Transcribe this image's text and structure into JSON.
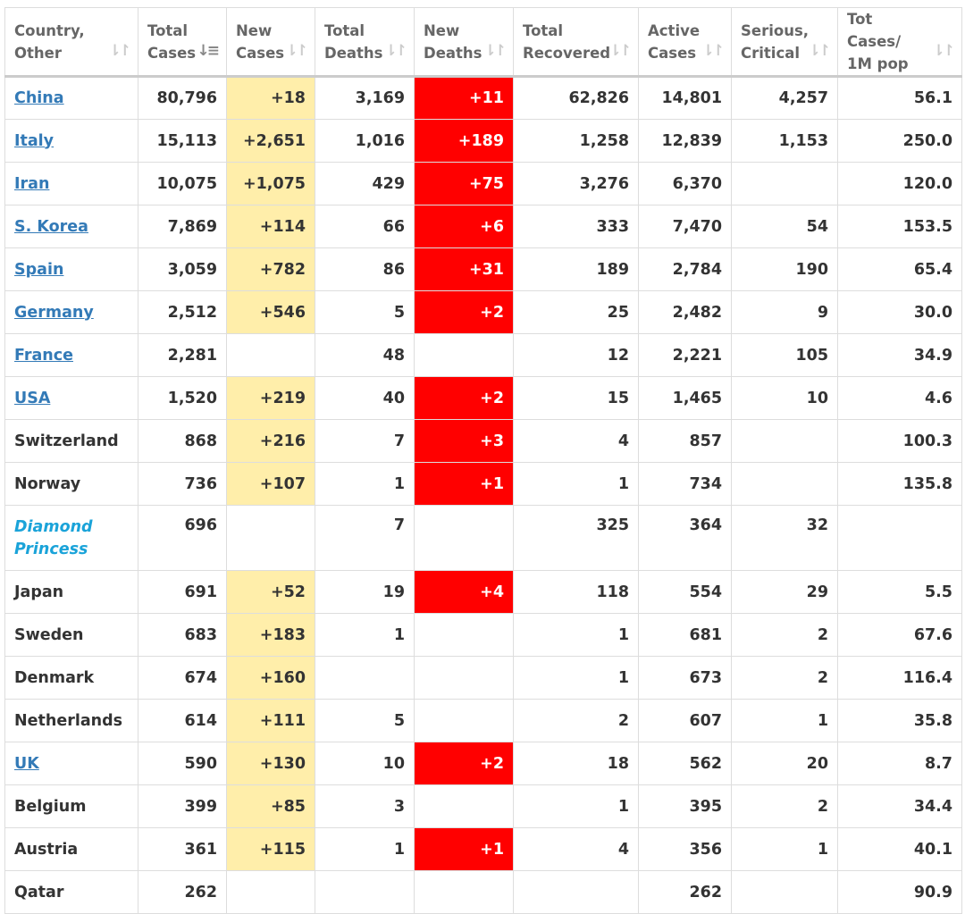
{
  "headers": [
    {
      "label1": "Country,",
      "label2": "Other",
      "sort": "⇂↾",
      "active": false
    },
    {
      "label1": "Total",
      "label2": "Cases",
      "sort": "↓≡",
      "active": true
    },
    {
      "label1": "New",
      "label2": "Cases",
      "sort": "⇂↾",
      "active": false
    },
    {
      "label1": "Total",
      "label2": "Deaths",
      "sort": "⇂↾",
      "active": false
    },
    {
      "label1": "New",
      "label2": "Deaths",
      "sort": "⇂↾",
      "active": false
    },
    {
      "label1": "Total",
      "label2": "Recovered",
      "sort": "⇂↾",
      "active": false
    },
    {
      "label1": "Active",
      "label2": "Cases",
      "sort": "⇂↾",
      "active": false
    },
    {
      "label1": "Serious,",
      "label2": "Critical",
      "sort": "⇂↾",
      "active": false
    },
    {
      "label1": "Tot Cases/",
      "label2": "1M pop",
      "sort": "⇂↾",
      "active": false
    }
  ],
  "colors": {
    "new_cases_bg": "#ffeeaa",
    "new_deaths_bg": "#ff0000",
    "link": "#337ab7",
    "ship": "#1aa3d9"
  },
  "rows": [
    {
      "country": "China",
      "link": true,
      "total": "80,796",
      "new": "+18",
      "deaths": "3,169",
      "new_deaths": "+11",
      "recovered": "62,826",
      "active": "14,801",
      "serious": "4,257",
      "per_m": "56.1"
    },
    {
      "country": "Italy",
      "link": true,
      "total": "15,113",
      "new": "+2,651",
      "deaths": "1,016",
      "new_deaths": "+189",
      "recovered": "1,258",
      "active": "12,839",
      "serious": "1,153",
      "per_m": "250.0"
    },
    {
      "country": "Iran",
      "link": true,
      "total": "10,075",
      "new": "+1,075",
      "deaths": "429",
      "new_deaths": "+75",
      "recovered": "3,276",
      "active": "6,370",
      "serious": "",
      "per_m": "120.0"
    },
    {
      "country": "S. Korea",
      "link": true,
      "total": "7,869",
      "new": "+114",
      "deaths": "66",
      "new_deaths": "+6",
      "recovered": "333",
      "active": "7,470",
      "serious": "54",
      "per_m": "153.5"
    },
    {
      "country": "Spain",
      "link": true,
      "total": "3,059",
      "new": "+782",
      "deaths": "86",
      "new_deaths": "+31",
      "recovered": "189",
      "active": "2,784",
      "serious": "190",
      "per_m": "65.4"
    },
    {
      "country": "Germany",
      "link": true,
      "total": "2,512",
      "new": "+546",
      "deaths": "5",
      "new_deaths": "+2",
      "recovered": "25",
      "active": "2,482",
      "serious": "9",
      "per_m": "30.0"
    },
    {
      "country": "France",
      "link": true,
      "total": "2,281",
      "new": "",
      "deaths": "48",
      "new_deaths": "",
      "recovered": "12",
      "active": "2,221",
      "serious": "105",
      "per_m": "34.9"
    },
    {
      "country": "USA",
      "link": true,
      "total": "1,520",
      "new": "+219",
      "deaths": "40",
      "new_deaths": "+2",
      "recovered": "15",
      "active": "1,465",
      "serious": "10",
      "per_m": "4.6"
    },
    {
      "country": "Switzerland",
      "link": false,
      "total": "868",
      "new": "+216",
      "deaths": "7",
      "new_deaths": "+3",
      "recovered": "4",
      "active": "857",
      "serious": "",
      "per_m": "100.3"
    },
    {
      "country": "Norway",
      "link": false,
      "total": "736",
      "new": "+107",
      "deaths": "1",
      "new_deaths": "+1",
      "recovered": "1",
      "active": "734",
      "serious": "",
      "per_m": "135.8"
    },
    {
      "country": "Diamond Princess",
      "ship": true,
      "total": "696",
      "new": "",
      "deaths": "7",
      "new_deaths": "",
      "recovered": "325",
      "active": "364",
      "serious": "32",
      "per_m": ""
    },
    {
      "country": "Japan",
      "link": false,
      "total": "691",
      "new": "+52",
      "deaths": "19",
      "new_deaths": "+4",
      "recovered": "118",
      "active": "554",
      "serious": "29",
      "per_m": "5.5"
    },
    {
      "country": "Sweden",
      "link": false,
      "total": "683",
      "new": "+183",
      "deaths": "1",
      "new_deaths": "",
      "recovered": "1",
      "active": "681",
      "serious": "2",
      "per_m": "67.6"
    },
    {
      "country": "Denmark",
      "link": false,
      "total": "674",
      "new": "+160",
      "deaths": "",
      "new_deaths": "",
      "recovered": "1",
      "active": "673",
      "serious": "2",
      "per_m": "116.4"
    },
    {
      "country": "Netherlands",
      "link": false,
      "total": "614",
      "new": "+111",
      "deaths": "5",
      "new_deaths": "",
      "recovered": "2",
      "active": "607",
      "serious": "1",
      "per_m": "35.8"
    },
    {
      "country": "UK",
      "link": true,
      "total": "590",
      "new": "+130",
      "deaths": "10",
      "new_deaths": "+2",
      "recovered": "18",
      "active": "562",
      "serious": "20",
      "per_m": "8.7"
    },
    {
      "country": "Belgium",
      "link": false,
      "total": "399",
      "new": "+85",
      "deaths": "3",
      "new_deaths": "",
      "recovered": "1",
      "active": "395",
      "serious": "2",
      "per_m": "34.4"
    },
    {
      "country": "Austria",
      "link": false,
      "total": "361",
      "new": "+115",
      "deaths": "1",
      "new_deaths": "+1",
      "recovered": "4",
      "active": "356",
      "serious": "1",
      "per_m": "40.1"
    },
    {
      "country": "Qatar",
      "link": false,
      "total": "262",
      "new": "",
      "deaths": "",
      "new_deaths": "",
      "recovered": "",
      "active": "262",
      "serious": "",
      "per_m": "90.9"
    }
  ]
}
